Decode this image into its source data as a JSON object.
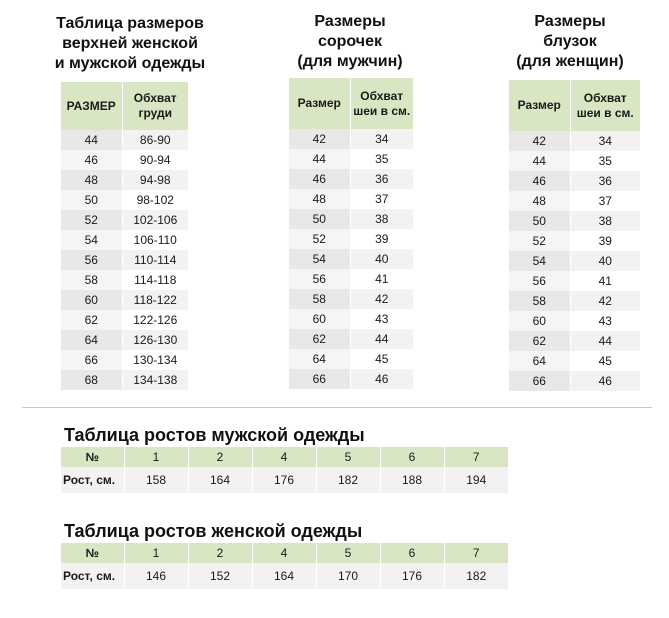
{
  "top_sizes": {
    "title_lines": [
      "Таблица размеров",
      "верхней женской",
      "и мужской одежды"
    ],
    "headers": [
      "РАЗМЕР",
      "Обхват груди"
    ],
    "rows": [
      [
        "44",
        "86-90"
      ],
      [
        "46",
        "90-94"
      ],
      [
        "48",
        "94-98"
      ],
      [
        "50",
        "98-102"
      ],
      [
        "52",
        "102-106"
      ],
      [
        "54",
        "106-110"
      ],
      [
        "56",
        "110-114"
      ],
      [
        "58",
        "114-118"
      ],
      [
        "60",
        "118-122"
      ],
      [
        "62",
        "122-126"
      ],
      [
        "64",
        "126-130"
      ],
      [
        "66",
        "130-134"
      ],
      [
        "68",
        "134-138"
      ]
    ]
  },
  "shirts": {
    "title_lines": [
      "Размеры",
      "сорочек",
      "(для мужчин)"
    ],
    "headers": [
      "Размер",
      "Обхват шеи в см."
    ],
    "rows": [
      [
        "42",
        "34"
      ],
      [
        "44",
        "35"
      ],
      [
        "46",
        "36"
      ],
      [
        "48",
        "37"
      ],
      [
        "50",
        "38"
      ],
      [
        "52",
        "39"
      ],
      [
        "54",
        "40"
      ],
      [
        "56",
        "41"
      ],
      [
        "58",
        "42"
      ],
      [
        "60",
        "43"
      ],
      [
        "62",
        "44"
      ],
      [
        "64",
        "45"
      ],
      [
        "66",
        "46"
      ]
    ]
  },
  "blouses": {
    "title_lines": [
      "Размеры",
      "блузок",
      "(для женщин)"
    ],
    "headers": [
      "Размер",
      "Обхват шеи в см."
    ],
    "rows": [
      [
        "42",
        "34"
      ],
      [
        "44",
        "35"
      ],
      [
        "46",
        "36"
      ],
      [
        "48",
        "37"
      ],
      [
        "50",
        "38"
      ],
      [
        "52",
        "39"
      ],
      [
        "54",
        "40"
      ],
      [
        "56",
        "41"
      ],
      [
        "58",
        "42"
      ],
      [
        "60",
        "43"
      ],
      [
        "62",
        "44"
      ],
      [
        "64",
        "45"
      ],
      [
        "66",
        "46"
      ]
    ]
  },
  "men_heights": {
    "title": "Таблица ростов мужской одежды",
    "row_labels": [
      "№",
      "Рост, см."
    ],
    "numbers": [
      "1",
      "2",
      "4",
      "5",
      "6",
      "7"
    ],
    "heights": [
      "158",
      "164",
      "176",
      "182",
      "188",
      "194"
    ]
  },
  "women_heights": {
    "title": "Таблица ростов женской одежды",
    "row_labels": [
      "№",
      "Рост, см."
    ],
    "numbers": [
      "1",
      "2",
      "4",
      "5",
      "6",
      "7"
    ],
    "heights": [
      "146",
      "152",
      "164",
      "170",
      "176",
      "182"
    ]
  },
  "colors": {
    "header_green": "#d9e6c4",
    "row_grey": "#f2f2f2"
  }
}
